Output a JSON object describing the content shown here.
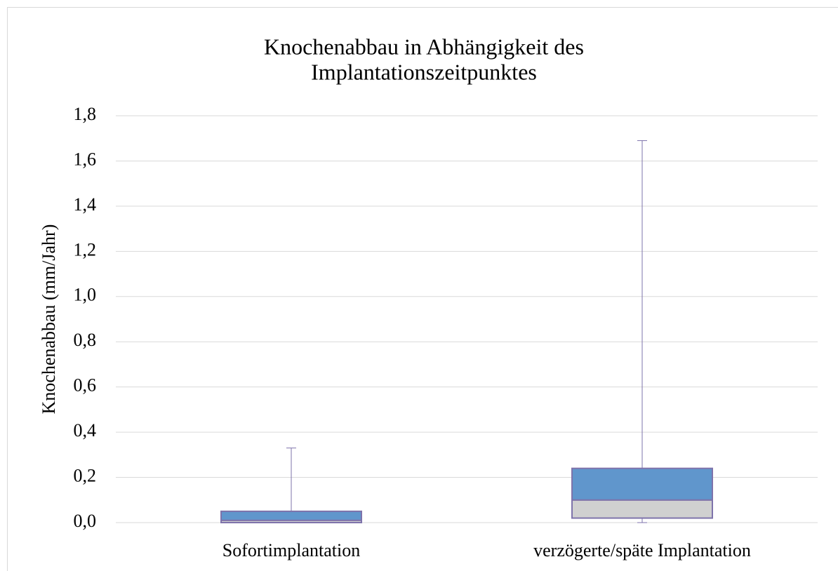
{
  "chart_data": {
    "type": "box",
    "title": [
      "Knochenabbau in Abhängigkeit des",
      "Implantationszeitpunktes"
    ],
    "y_label": "Knochenabbau (mm/Jahr)",
    "categories": [
      "Sofortimplantation",
      "verzögerte/späte Implantation"
    ],
    "min": [
      0.0,
      0.0
    ],
    "q1": [
      0.0,
      0.02
    ],
    "median": [
      0.01,
      0.1
    ],
    "q3": [
      0.05,
      0.24
    ],
    "max": [
      0.33,
      1.69
    ],
    "upper_color": "#6096cc",
    "lower_color": "#d0d0d0",
    "edge_color": "#7e73ab",
    "ylim": [
      0,
      1.8
    ],
    "yticks": [
      {
        "value": 0,
        "label": "0,0"
      },
      {
        "value": 0.2,
        "label": "0,2"
      },
      {
        "value": 0.4,
        "label": "0,4"
      },
      {
        "value": 0.6,
        "label": "0,6"
      },
      {
        "value": 0.8,
        "label": "0,8"
      },
      {
        "value": 1.0,
        "label": "1,0"
      },
      {
        "value": 1.2,
        "label": "1,2"
      },
      {
        "value": 1.4,
        "label": "1,4"
      },
      {
        "value": 1.6,
        "label": "1,6"
      },
      {
        "value": 1.8,
        "label": "1,8"
      }
    ],
    "grid": true
  }
}
